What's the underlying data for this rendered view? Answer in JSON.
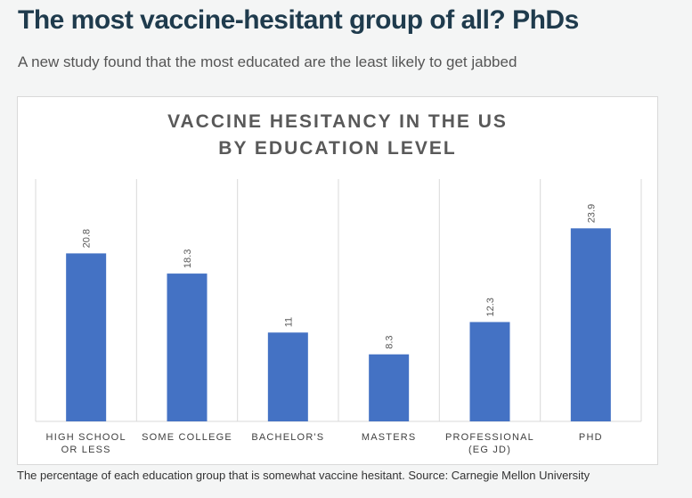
{
  "header": {
    "headline": "The most vaccine-hesitant group of all? PhDs",
    "standfirst": "A new study found that the most educated are the least likely to get jabbed"
  },
  "caption": "The percentage of each education group that is somewhat vaccine hesitant. Source: Carnegie Mellon University",
  "colors": {
    "bar": "#4472c4",
    "grid": "#d9d9d9",
    "text": "#595959"
  },
  "chart_data": {
    "type": "bar",
    "title_lines": [
      "VACCINE HESITANCY IN THE US",
      "BY EDUCATION LEVEL"
    ],
    "categories": [
      [
        "HIGH SCHOOL",
        "OR LESS"
      ],
      [
        "SOME COLLEGE"
      ],
      [
        "BACHELOR'S"
      ],
      [
        "MASTERS"
      ],
      [
        "PROFESSIONAL",
        "(EG JD)"
      ],
      [
        "PHD"
      ]
    ],
    "values": [
      20.8,
      18.3,
      11,
      8.3,
      12.3,
      23.9
    ],
    "data_labels": [
      "20.8",
      "18.3",
      "11",
      "8.3",
      "12.3",
      "23.9"
    ],
    "ylim": [
      0,
      30
    ],
    "y_axis_shown": false,
    "vertical_category_gridlines": true,
    "data_label_orientation": "rotated",
    "legend": "none"
  }
}
